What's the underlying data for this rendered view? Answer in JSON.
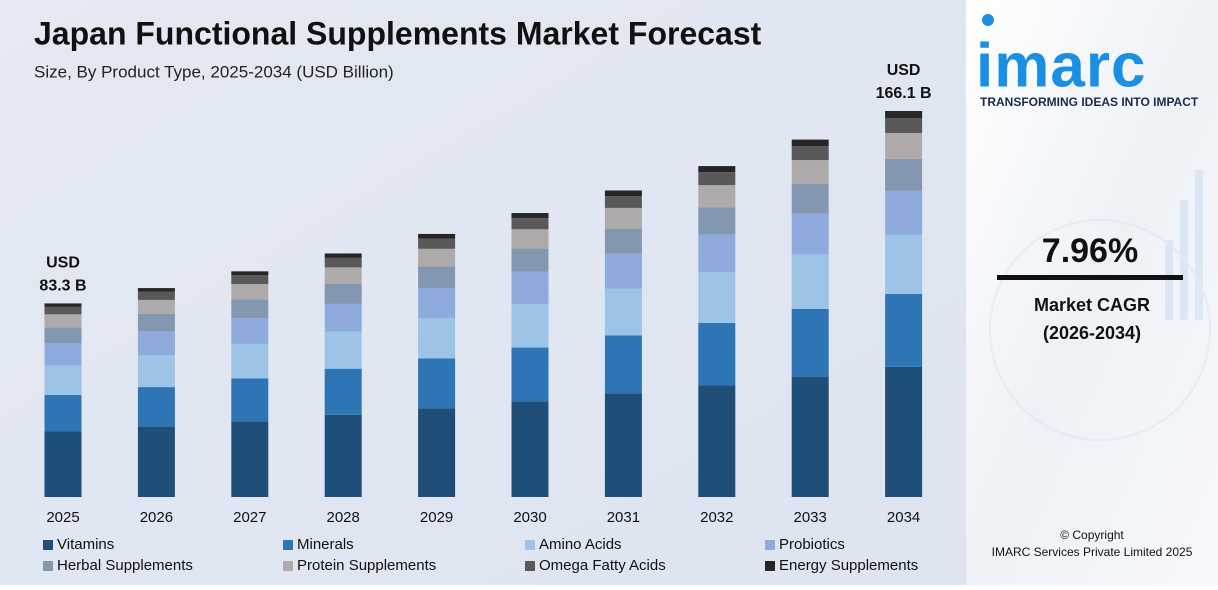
{
  "chart_data": {
    "type": "stacked-bar",
    "title": "Japan Functional Supplements Market Forecast",
    "subtitle": "Size, By Product Type, 2025-2034 (USD Billion)",
    "categories": [
      "2025",
      "2026",
      "2027",
      "2028",
      "2029",
      "2030",
      "2031",
      "2032",
      "2033",
      "2034"
    ],
    "series": [
      {
        "name": "Vitamins",
        "color": "#1f4e79",
        "values": [
          28.2,
          30.3,
          32.6,
          35.4,
          38.2,
          41.2,
          44.6,
          48.0,
          51.8,
          56.0
        ]
      },
      {
        "name": "Minerals",
        "color": "#2e75b6",
        "values": [
          15.7,
          17.0,
          18.4,
          19.8,
          21.4,
          23.1,
          24.9,
          26.9,
          29.1,
          31.4
        ]
      },
      {
        "name": "Amino Acids",
        "color": "#9dc3e6",
        "values": [
          12.7,
          13.8,
          14.9,
          16.0,
          17.3,
          18.7,
          20.2,
          21.8,
          23.5,
          25.4
        ]
      },
      {
        "name": "Probiotics",
        "color": "#8faadc",
        "values": [
          9.5,
          10.2,
          11.1,
          11.9,
          12.9,
          13.9,
          15.0,
          16.2,
          17.5,
          18.9
        ]
      },
      {
        "name": "Herbal Supplements",
        "color": "#8497b0",
        "values": [
          6.9,
          7.5,
          8.1,
          8.7,
          9.4,
          10.1,
          10.9,
          11.8,
          12.8,
          13.8
        ]
      },
      {
        "name": "Protein Supplements",
        "color": "#aeaaaa",
        "values": [
          5.6,
          6.0,
          6.5,
          7.0,
          7.6,
          8.2,
          8.8,
          9.5,
          10.3,
          11.1
        ]
      },
      {
        "name": "Omega Fatty Acids",
        "color": "#595959",
        "values": [
          3.2,
          3.5,
          3.8,
          4.1,
          4.4,
          4.8,
          5.1,
          5.6,
          6.0,
          6.5
        ]
      },
      {
        "name": "Energy Supplements",
        "color": "#262626",
        "values": [
          1.5,
          1.6,
          1.7,
          1.9,
          2.0,
          2.2,
          2.4,
          2.6,
          2.8,
          3.0
        ]
      }
    ],
    "total_labels": [
      {
        "category": "2025",
        "lines": [
          "USD",
          "83.3 B"
        ]
      },
      {
        "category": "2034",
        "lines": [
          "USD",
          "166.1 B"
        ]
      }
    ]
  },
  "sidebar": {
    "logo": "imarc",
    "tagline": "TRANSFORMING IDEAS INTO IMPACT",
    "cagr": "7.96%",
    "cagr_label": "Market CAGR",
    "cagr_period": "(2026-2034)",
    "copyright": "© Copyright",
    "company": "IMARC Services Private Limited 2025"
  }
}
